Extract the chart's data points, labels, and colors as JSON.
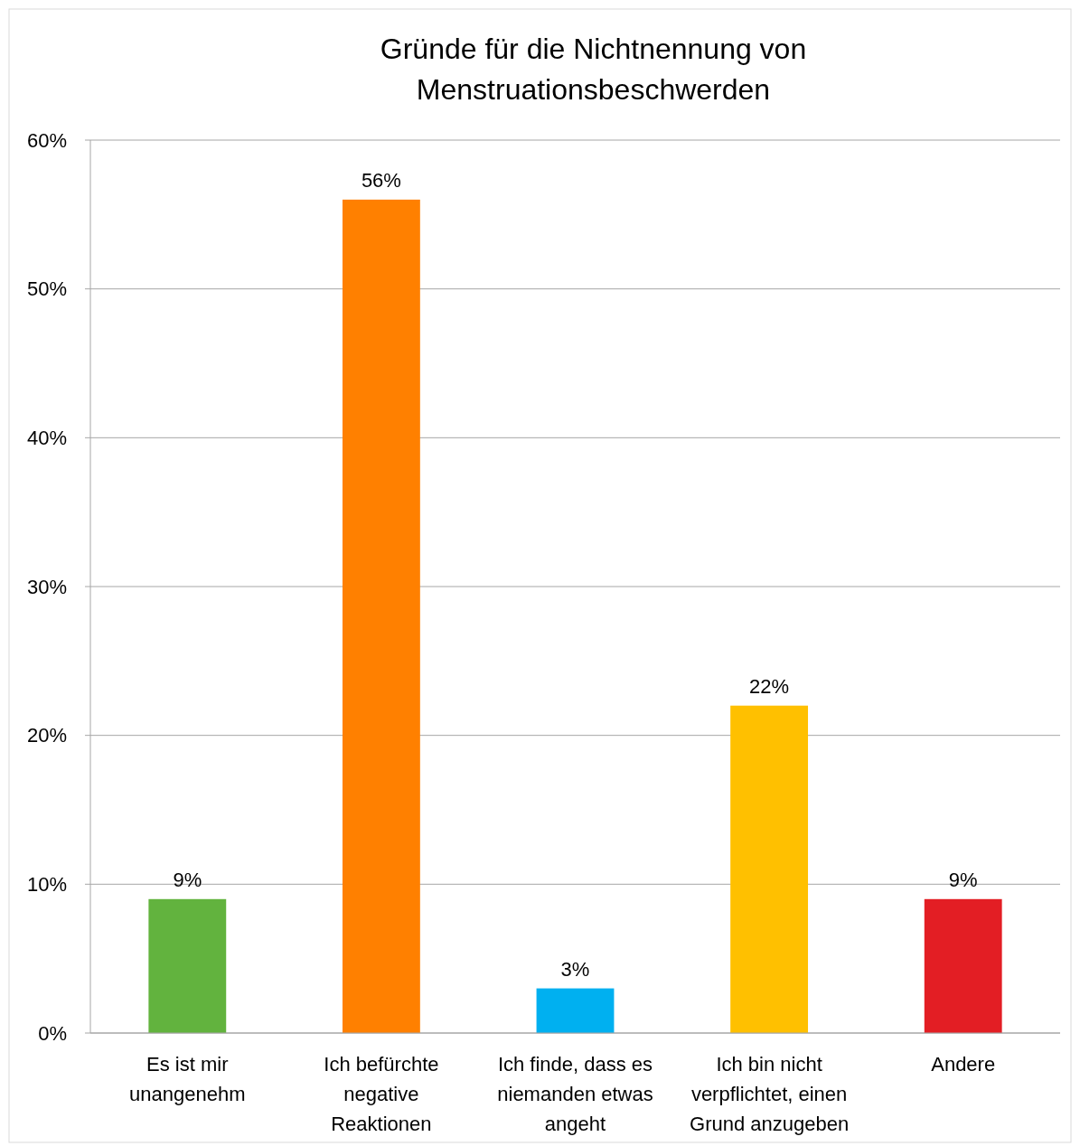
{
  "chart_data": {
    "type": "bar",
    "title": "Gründe für die Nichtnennung von Menstruationsbeschwerden",
    "categories": [
      "Es ist mir unangenehm",
      "Ich befürchte negative Reaktionen",
      "Ich finde, dass es niemanden etwas angeht",
      "Ich bin nicht verpflichtet, einen Grund anzugeben",
      "Andere"
    ],
    "values": [
      9,
      56,
      3,
      22,
      9
    ],
    "colors": [
      "#62b33e",
      "#ff8000",
      "#00b0f0",
      "#ffc000",
      "#e31e24"
    ],
    "value_labels": [
      "9%",
      "56%",
      "3%",
      "22%",
      "9%"
    ],
    "ylim": [
      0,
      60
    ],
    "yticks": [
      {
        "value": 0,
        "label": "0%"
      },
      {
        "value": 10,
        "label": "10%"
      },
      {
        "value": 20,
        "label": "20%"
      },
      {
        "value": 30,
        "label": "30%"
      },
      {
        "value": 40,
        "label": "40%"
      },
      {
        "value": 50,
        "label": "50%"
      },
      {
        "value": 60,
        "label": "60%"
      }
    ],
    "grid": "y"
  }
}
